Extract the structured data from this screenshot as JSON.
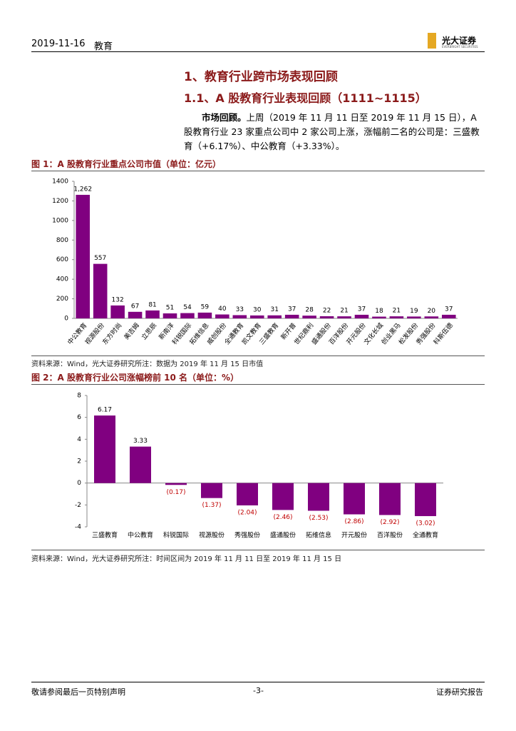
{
  "header": {
    "date": "2019-11-16",
    "sector": "教育",
    "logo": "光大证券",
    "logo_en": "EVERBRIGHT SECURITIES"
  },
  "heading1": "1、教育行业跨市场表现回顾",
  "heading2": "1.1、A 股教育行业表现回顾（1111~1115）",
  "paragraph": {
    "lead": "市场回顾。",
    "text": "上周（2019 年 11 月 11 日至 2019 年 11 月 15 日），A 股教育行业 23 家重点公司中 2 家公司上涨，涨幅前二名的公司是：三盛教育（+6.17%）、中公教育（+3.33%）。"
  },
  "chart_data": [
    {
      "type": "bar",
      "title": "图 1：A 股教育行业重点公司市值（单位：亿元）",
      "categories": [
        "中公教育",
        "视源股份",
        "东方时尚",
        "美吉姆",
        "立思辰",
        "新南洋",
        "科锐国际",
        "拓维信息",
        "威创股份",
        "全通教育",
        "凯文教育",
        "三盛教育",
        "新开普",
        "世纪鼎利",
        "盛通股份",
        "百洋股份",
        "开元股份",
        "文化长城",
        "创业黑马",
        "松发股份",
        "秀强股份",
        "科斯伍德"
      ],
      "values": [
        1262,
        557,
        132,
        67,
        81,
        51,
        54,
        59,
        40,
        33,
        30,
        31,
        37,
        28,
        22,
        21,
        37,
        18,
        21,
        19,
        20,
        37
      ],
      "value_labels": [
        "1,262",
        "557",
        "132",
        "67",
        "81",
        "51",
        "54",
        "59",
        "40",
        "33",
        "30",
        "31",
        "37",
        "28",
        "22",
        "21",
        "37",
        "18",
        "21",
        "19",
        "20",
        "37"
      ],
      "color": "#800080",
      "ylim": [
        0,
        1400
      ],
      "yticks": [
        0,
        200,
        400,
        600,
        800,
        1000,
        1200,
        1400
      ],
      "source": "资料来源：Wind，光大证券研究所注：数据为 2019 年 11 月 15 日市值"
    },
    {
      "type": "bar",
      "title": "图 2：A 股教育行业公司涨幅榜前 10 名（单位：%）",
      "categories": [
        "三盛教育",
        "中公教育",
        "科锐国际",
        "视源股份",
        "秀强股份",
        "盛通股份",
        "拓维信息",
        "开元股份",
        "百洋股份",
        "全通教育"
      ],
      "values": [
        6.17,
        3.33,
        -0.17,
        -1.37,
        -2.04,
        -2.46,
        -2.53,
        -2.86,
        -2.92,
        -3.02
      ],
      "value_labels": [
        "6.17",
        "3.33",
        "(0.17)",
        "(1.37)",
        "(2.04)",
        "(2.46)",
        "(2.53)",
        "(2.86)",
        "(2.92)",
        "(3.02)"
      ],
      "color": "#800080",
      "negative_label_color": "#c00000",
      "ylim": [
        -4,
        8
      ],
      "yticks": [
        -4,
        -2,
        0,
        2,
        4,
        6,
        8
      ],
      "source": "资料来源：Wind，光大证券研究所注：时间区间为 2019 年 11 月 11 日至 2019 年 11 月 15 日"
    }
  ],
  "footer": {
    "left": "敬请参阅最后一页特别声明",
    "center": "-3-",
    "right": "证券研究报告"
  }
}
